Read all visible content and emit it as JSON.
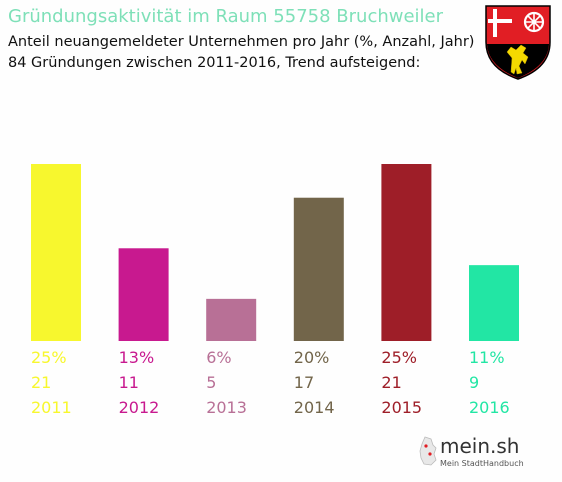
{
  "header": {
    "title": "Gründungsaktivität im Raum 55758 Bruchweiler",
    "subtitle_line1": "Anteil neuangemeldeter Unternehmen pro Jahr (%, Anzahl, Jahr)",
    "subtitle_line2": "84 Gründungen zwischen 2011-2016, Trend aufsteigend:"
  },
  "brand": {
    "name": "mein.sh",
    "tagline": "Mein StadtHandbuch"
  },
  "crest_icon": "rhineland-palatinate-coat-of-arms-icon",
  "chart_data": {
    "type": "bar",
    "categories": [
      "2011",
      "2012",
      "2013",
      "2014",
      "2015",
      "2016"
    ],
    "values": [
      21,
      11,
      5,
      17,
      21,
      9
    ],
    "percents": [
      "25%",
      "13%",
      "6%",
      "20%",
      "25%",
      "11%"
    ],
    "colors": [
      "#f7f72e",
      "#c8198f",
      "#b87096",
      "#72654a",
      "#9e1e28",
      "#22e6a4"
    ],
    "ylim": [
      0,
      21
    ],
    "grid": false,
    "legend": "none"
  }
}
